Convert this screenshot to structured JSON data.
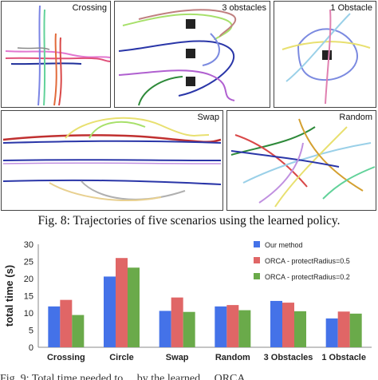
{
  "panels": {
    "crossing": "Crossing",
    "three_obstacles": "3 obstacles",
    "one_obstacle": "1 Obstacle",
    "swap": "Swap",
    "random": "Random"
  },
  "figure_caption": "Fig. 8: Trajectories of five scenarios using the learned policy.",
  "bottom_text": "Fig. 9: Total time needed to ... by the learned ... ORCA ...",
  "chart_data": {
    "type": "bar",
    "categories": [
      "Crossing",
      "Circle",
      "Swap",
      "Random",
      "3 Obstacles",
      "1 Obstacle"
    ],
    "series": [
      {
        "name": "Our method",
        "color": "#4472e8",
        "values": [
          11.9,
          20.6,
          10.6,
          11.9,
          13.5,
          8.4
        ]
      },
      {
        "name": "ORCA - protectRadius=0.5",
        "color": "#e06666",
        "values": [
          13.8,
          26.0,
          14.5,
          12.3,
          13.0,
          10.4
        ]
      },
      {
        "name": "ORCA - protectRadius=0.2",
        "color": "#6aaa4a",
        "values": [
          9.4,
          23.2,
          10.3,
          10.8,
          10.5,
          9.8
        ]
      }
    ],
    "ylabel": "total time (s)",
    "yticks": [
      0,
      5,
      10,
      15,
      20,
      25,
      30
    ],
    "ylim": [
      0,
      30
    ],
    "legend_position": "top-right"
  }
}
